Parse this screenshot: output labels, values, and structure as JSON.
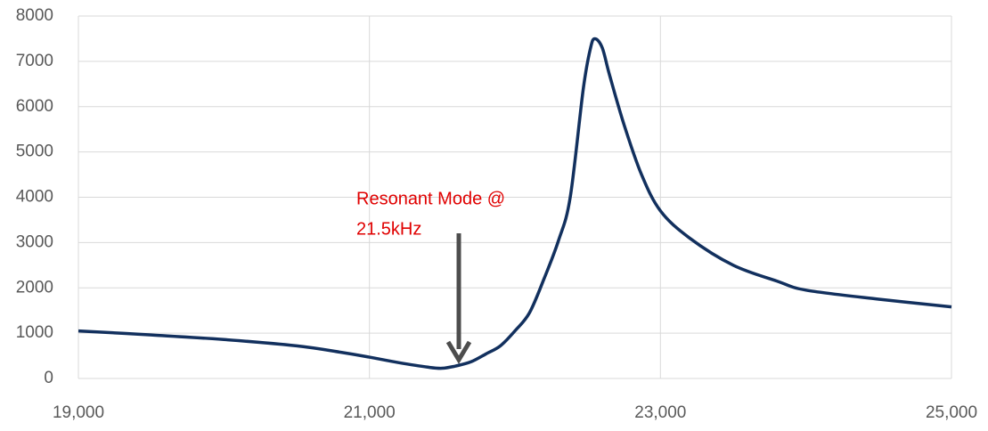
{
  "chart_data": {
    "type": "line",
    "x": [
      19000,
      19500,
      20000,
      20500,
      20800,
      21000,
      21200,
      21400,
      21500,
      21600,
      21700,
      21800,
      21900,
      22000,
      22100,
      22200,
      22300,
      22380,
      22470,
      22520,
      22550,
      22600,
      22650,
      22750,
      22870,
      23000,
      23200,
      23500,
      23800,
      24000,
      24500,
      25000
    ],
    "values": [
      1050,
      960,
      860,
      720,
      580,
      470,
      350,
      250,
      225,
      280,
      370,
      540,
      720,
      1050,
      1450,
      2200,
      3050,
      4000,
      6400,
      7300,
      7500,
      7300,
      6700,
      5600,
      4500,
      3700,
      3100,
      2500,
      2150,
      1950,
      1750,
      1580
    ],
    "color": "#12305e",
    "xlim": [
      19000,
      25000
    ],
    "xticks": [
      {
        "value": 19000,
        "label": "19,000"
      },
      {
        "value": 21000,
        "label": "21,000"
      },
      {
        "value": 23000,
        "label": "23,000"
      },
      {
        "value": 25000,
        "label": "25,000"
      }
    ],
    "ylim": [
      0,
      8000
    ],
    "yticks": [
      0,
      1000,
      2000,
      3000,
      4000,
      5000,
      6000,
      7000,
      8000
    ],
    "grid": true,
    "annotation": [
      "Resonant Mode @",
      "21.5kHz"
    ]
  }
}
